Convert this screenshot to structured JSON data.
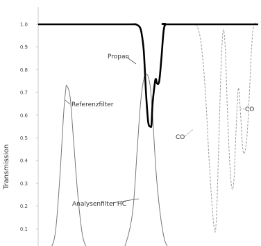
{
  "chart_data": {
    "type": "line",
    "title": "",
    "xlabel": "",
    "ylabel": "Transmission",
    "ylim": [
      0.0,
      1.0
    ],
    "yticks": [
      "1.0",
      "0.9",
      "0.8",
      "0.7",
      "0.6",
      "0.5",
      "0.4",
      "0.3",
      "0.2",
      "0.1"
    ],
    "xlim": [
      0,
      100
    ],
    "grid": false,
    "legend": "none",
    "colors": {
      "propan": "#000000",
      "filter": "#777777",
      "co": "#999999"
    },
    "series": [
      {
        "name": "Propan",
        "style": "solid-bold",
        "x": [
          0,
          40,
          44,
          46,
          47,
          48,
          49,
          50,
          51,
          51.5,
          52,
          53,
          53.5,
          54,
          55,
          56,
          57,
          58,
          60,
          100
        ],
        "y": [
          1.0,
          1.0,
          1.0,
          0.99,
          0.96,
          0.88,
          0.7,
          0.57,
          0.55,
          0.56,
          0.65,
          0.74,
          0.76,
          0.74,
          0.75,
          0.85,
          0.97,
          1.0,
          1.0,
          1.0
        ]
      },
      {
        "name": "Referenzfilter",
        "style": "solid-thin",
        "x": [
          0,
          3,
          6,
          8,
          10,
          11.5,
          12.5,
          13,
          14.5,
          16,
          18,
          20,
          22,
          25
        ],
        "y": [
          0.0,
          0.0,
          0.02,
          0.1,
          0.35,
          0.6,
          0.71,
          0.73,
          0.68,
          0.5,
          0.25,
          0.08,
          0.02,
          0.0
        ]
      },
      {
        "name": "Analysenfilter HC",
        "style": "solid-thin",
        "x": [
          33,
          37,
          40,
          43,
          45,
          46.5,
          48,
          49,
          50,
          51,
          52,
          54,
          57,
          60,
          63
        ],
        "y": [
          0.0,
          0.0,
          0.04,
          0.18,
          0.45,
          0.65,
          0.76,
          0.78,
          0.77,
          0.72,
          0.6,
          0.3,
          0.07,
          0.01,
          0.0
        ]
      },
      {
        "name": "CO",
        "style": "dashed",
        "x": [
          72,
          74,
          76,
          78,
          80,
          81,
          82,
          83,
          84,
          85,
          86,
          87,
          88,
          89,
          90,
          91,
          92,
          93,
          94,
          95,
          96,
          97,
          98,
          99,
          100
        ],
        "y": [
          1.0,
          0.92,
          0.7,
          0.35,
          0.1,
          0.15,
          0.45,
          0.78,
          0.97,
          0.9,
          0.62,
          0.4,
          0.28,
          0.32,
          0.55,
          0.72,
          0.6,
          0.45,
          0.44,
          0.52,
          0.7,
          0.9,
          1.0,
          1.0,
          1.0
        ]
      }
    ],
    "annotations": [
      {
        "text": "Propan"
      },
      {
        "text": "Referenzfilter"
      },
      {
        "text": "Analysenfilter HC"
      },
      {
        "text": "CO"
      },
      {
        "text": "CO"
      }
    ]
  }
}
